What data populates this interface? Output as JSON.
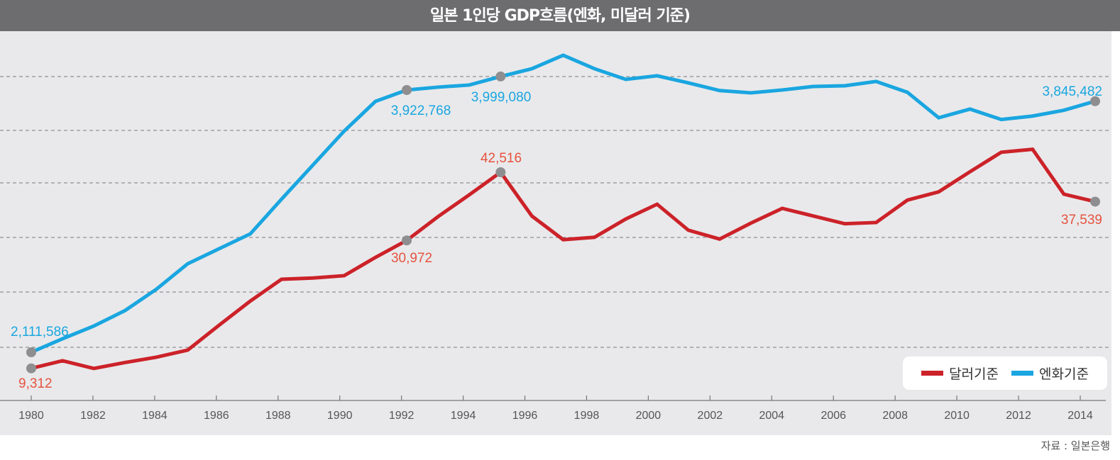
{
  "chart_data": {
    "type": "line",
    "title": "일본 1인당 GDP흐름(엔화, 미달러 기준)",
    "xlabel": "",
    "ylabel": "",
    "x": [
      1980,
      1981,
      1982,
      1983,
      1984,
      1985,
      1986,
      1987,
      1988,
      1989,
      1990,
      1991,
      1992,
      1993,
      1994,
      1995,
      1996,
      1997,
      1998,
      1999,
      2000,
      2001,
      2002,
      2003,
      2004,
      2005,
      2006,
      2007,
      2008,
      2009,
      2010,
      2011,
      2012,
      2013,
      2014
    ],
    "x_tick_labels": [
      "1980",
      "1982",
      "1984",
      "1986",
      "1988",
      "1990",
      "1992",
      "1994",
      "1996",
      "1998",
      "2000",
      "2002",
      "2004",
      "2006",
      "2008",
      "2010",
      "2012",
      "2014"
    ],
    "grid": "horizontal dashed",
    "y_axis_labels": "none",
    "legend_position": "bottom-right",
    "series": [
      {
        "name": "달러기준",
        "color": "#cc2229",
        "values": [
          9312,
          10600,
          9300,
          10300,
          11200,
          12400,
          16600,
          20700,
          24400,
          24600,
          25000,
          28100,
          30972,
          35000,
          38700,
          42516,
          35100,
          31100,
          31500,
          34600,
          37100,
          32700,
          31200,
          33900,
          36400,
          35100,
          33800,
          34000,
          37800,
          39200,
          42600,
          45900,
          46400,
          38800,
          37539
        ]
      },
      {
        "name": "엔화기준",
        "color": "#1aa6e0",
        "values": [
          2111586,
          2205000,
          2293000,
          2400000,
          2547000,
          2723000,
          2826000,
          2929000,
          3169000,
          3404000,
          3639000,
          3844000,
          3922768,
          3939000,
          3951000,
          3999080,
          4043000,
          4119000,
          4043000,
          3983000,
          4003000,
          3963000,
          3919000,
          3903000,
          3923000,
          3943000,
          3947000,
          3971000,
          3907000,
          3731000,
          3791000,
          3719000,
          3743000,
          3783000,
          3845482
        ]
      }
    ],
    "annotations": [
      {
        "series": "엔화기준",
        "x": 1980,
        "label": "2,111,586"
      },
      {
        "series": "엔화기준",
        "x": 1992,
        "label": "3,922,768"
      },
      {
        "series": "엔화기준",
        "x": 1995,
        "label": "3,999,080"
      },
      {
        "series": "엔화기준",
        "x": 2014,
        "label": "3,845,482"
      },
      {
        "series": "달러기준",
        "x": 1980,
        "label": "9,312"
      },
      {
        "series": "달러기준",
        "x": 1992,
        "label": "30,972"
      },
      {
        "series": "달러기준",
        "x": 1995,
        "label": "42,516"
      },
      {
        "series": "달러기준",
        "x": 2014,
        "label": "37,539"
      }
    ],
    "marker_color": "#8e8e90",
    "source": "자료 : 일본은행"
  }
}
